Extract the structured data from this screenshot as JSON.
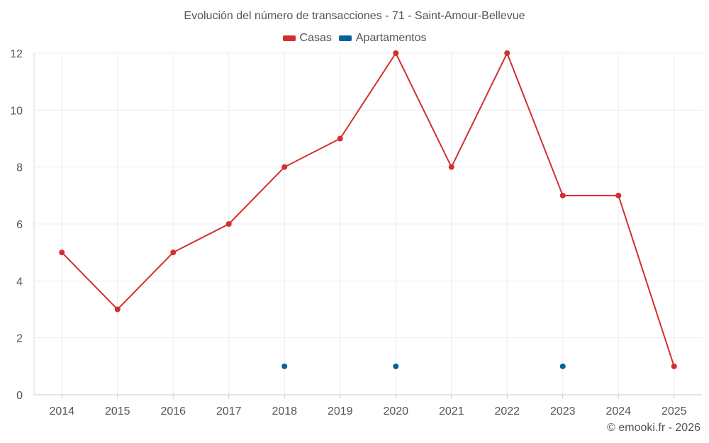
{
  "chart_data": {
    "type": "line",
    "title": "Evolución del número de transacciones - 71 - Saint-Amour-Bellevue",
    "categories": [
      "2014",
      "2015",
      "2016",
      "2017",
      "2018",
      "2019",
      "2020",
      "2021",
      "2022",
      "2023",
      "2024",
      "2025"
    ],
    "series": [
      {
        "name": "Casas",
        "color": "#d32f2f",
        "values": [
          5,
          3,
          5,
          6,
          8,
          9,
          12,
          8,
          12,
          7,
          7,
          1
        ]
      },
      {
        "name": "Apartamentos",
        "color": "#01649b",
        "values": [
          null,
          null,
          null,
          null,
          1,
          null,
          1,
          null,
          null,
          1,
          null,
          null
        ]
      }
    ],
    "yticks": [
      "0",
      "2",
      "4",
      "6",
      "8",
      "10",
      "12"
    ],
    "ylim": [
      0,
      12
    ],
    "xlabel": "",
    "ylabel": "",
    "grid": true,
    "legend_position": "top-center"
  },
  "credit": "© emooki.fr - 2026"
}
